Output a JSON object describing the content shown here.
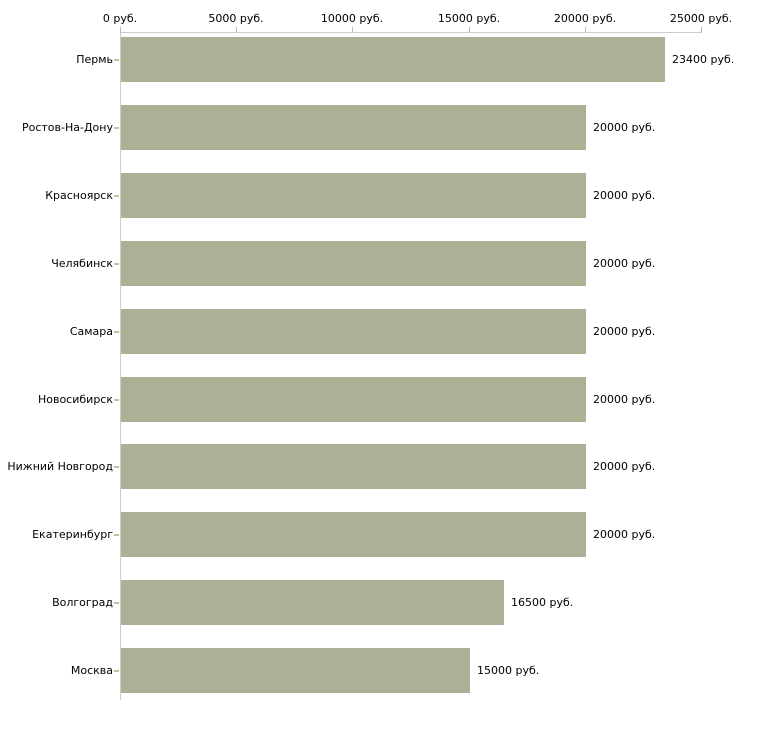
{
  "chart_data": {
    "type": "bar",
    "orientation": "horizontal",
    "title": "",
    "xlabel": "",
    "ylabel": "",
    "unit": "руб.",
    "categories": [
      "Пермь",
      "Ростов-На-Дону",
      "Красноярск",
      "Челябинск",
      "Самара",
      "Новосибирск",
      "Нижний Новгород",
      "Екатеринбург",
      "Волгоград",
      "Москва"
    ],
    "values": [
      23400,
      20000,
      20000,
      20000,
      20000,
      20000,
      20000,
      20000,
      16500,
      15000
    ],
    "value_labels": [
      "23400 руб.",
      "20000 руб.",
      "20000 руб.",
      "20000 руб.",
      "20000 руб.",
      "20000 руб.",
      "20000 руб.",
      "20000 руб.",
      "16500 руб.",
      "15000 руб."
    ],
    "x_ticks": [
      0,
      5000,
      10000,
      15000,
      20000,
      25000
    ],
    "x_tick_labels": [
      "0 руб.",
      "5000 руб.",
      "10000 руб.",
      "15000 руб.",
      "20000 руб.",
      "25000 руб."
    ],
    "xlim": [
      0,
      25000
    ],
    "grid": "off",
    "legend": "none",
    "colors": {
      "bar": "#abb194",
      "axis_line": "#cccccc",
      "tick_mark": "#c6c09c",
      "label_text": "#000000",
      "background": "#ffffff"
    }
  }
}
